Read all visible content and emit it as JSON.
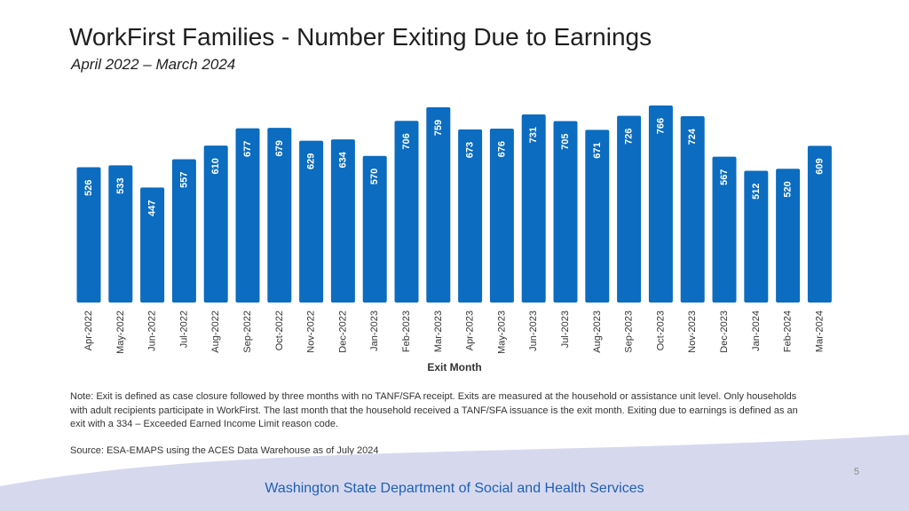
{
  "page": {
    "title": "WorkFirst Families - Number Exiting Due to Earnings",
    "subtitle": "April 2022 – March 2024",
    "note": "Note: Exit is defined as case closure followed by three months with no TANF/SFA receipt. Exits are measured at the household or assistance unit level. Only households with adult recipients participate in WorkFirst. The last month that the household received a TANF/SFA issuance is the exit month. Exiting due to earnings is defined as an exit with a 334 – Exceeded Earned Income Limit reason code.",
    "source": "Source: ESA-EMAPS using the ACES Data Warehouse as of July 2024",
    "page_number": "5",
    "footer_org": "Washington State Department of Social and Health Services"
  },
  "colors": {
    "bar": "#0b6cc0",
    "footer_wave": "#d6d9ee",
    "footer_text": "#1f5fb5"
  },
  "chart_data": {
    "type": "bar",
    "title": "WorkFirst Families - Number Exiting Due to Earnings",
    "xlabel": "Exit Month",
    "ylabel": "",
    "ylim": [
      0,
      800
    ],
    "grid": false,
    "categories": [
      "Apr-2022",
      "May-2022",
      "Jun-2022",
      "Jul-2022",
      "Aug-2022",
      "Sep-2022",
      "Oct-2022",
      "Nov-2022",
      "Dec-2022",
      "Jan-2023",
      "Feb-2023",
      "Mar-2023",
      "Apr-2023",
      "May-2023",
      "Jun-2023",
      "Jul-2023",
      "Aug-2023",
      "Sep-2023",
      "Oct-2023",
      "Nov-2023",
      "Dec-2023",
      "Jan-2024",
      "Feb-2024",
      "Mar-2024"
    ],
    "values": [
      526,
      533,
      447,
      557,
      610,
      677,
      679,
      629,
      634,
      570,
      706,
      759,
      673,
      676,
      731,
      705,
      671,
      726,
      766,
      724,
      567,
      512,
      520,
      609
    ]
  }
}
